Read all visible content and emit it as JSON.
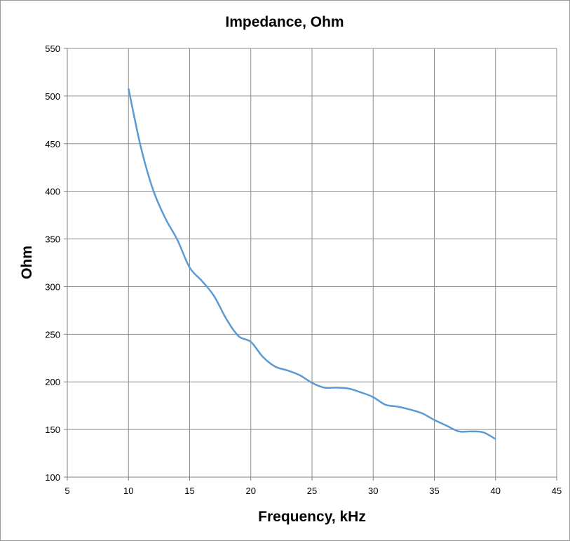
{
  "chart_data": {
    "type": "line",
    "title": "Impedance, Ohm",
    "xlabel": "Frequency, kHz",
    "ylabel": "Ohm",
    "xlim": [
      5,
      45
    ],
    "ylim": [
      100,
      550
    ],
    "x_ticks": [
      5,
      10,
      15,
      20,
      25,
      30,
      35,
      40,
      45
    ],
    "y_ticks": [
      100,
      150,
      200,
      250,
      300,
      350,
      400,
      450,
      500,
      550
    ],
    "x_tick_labels": [
      "5",
      "10",
      "15",
      "20",
      "25",
      "30",
      "35",
      "40",
      "45"
    ],
    "y_tick_labels": [
      "100",
      "150",
      "200",
      "250",
      "300",
      "350",
      "400",
      "450",
      "500",
      "550"
    ],
    "grid": true,
    "legend": "none",
    "series": [
      {
        "color": "#5b9bd5",
        "x": [
          10,
          11,
          12,
          13,
          14,
          15,
          16,
          17,
          18,
          19,
          20,
          21,
          22,
          23,
          24,
          25,
          26,
          27,
          28,
          29,
          30,
          31,
          32,
          33,
          34,
          35,
          36,
          37,
          38,
          39,
          40
        ],
        "y": [
          508,
          447,
          402,
          372,
          349,
          320,
          306,
          290,
          266,
          248,
          242,
          226,
          216,
          212,
          207,
          199,
          194,
          194,
          193,
          189,
          184,
          176,
          174,
          171,
          167,
          160,
          154,
          148,
          148,
          147,
          140
        ]
      }
    ]
  }
}
